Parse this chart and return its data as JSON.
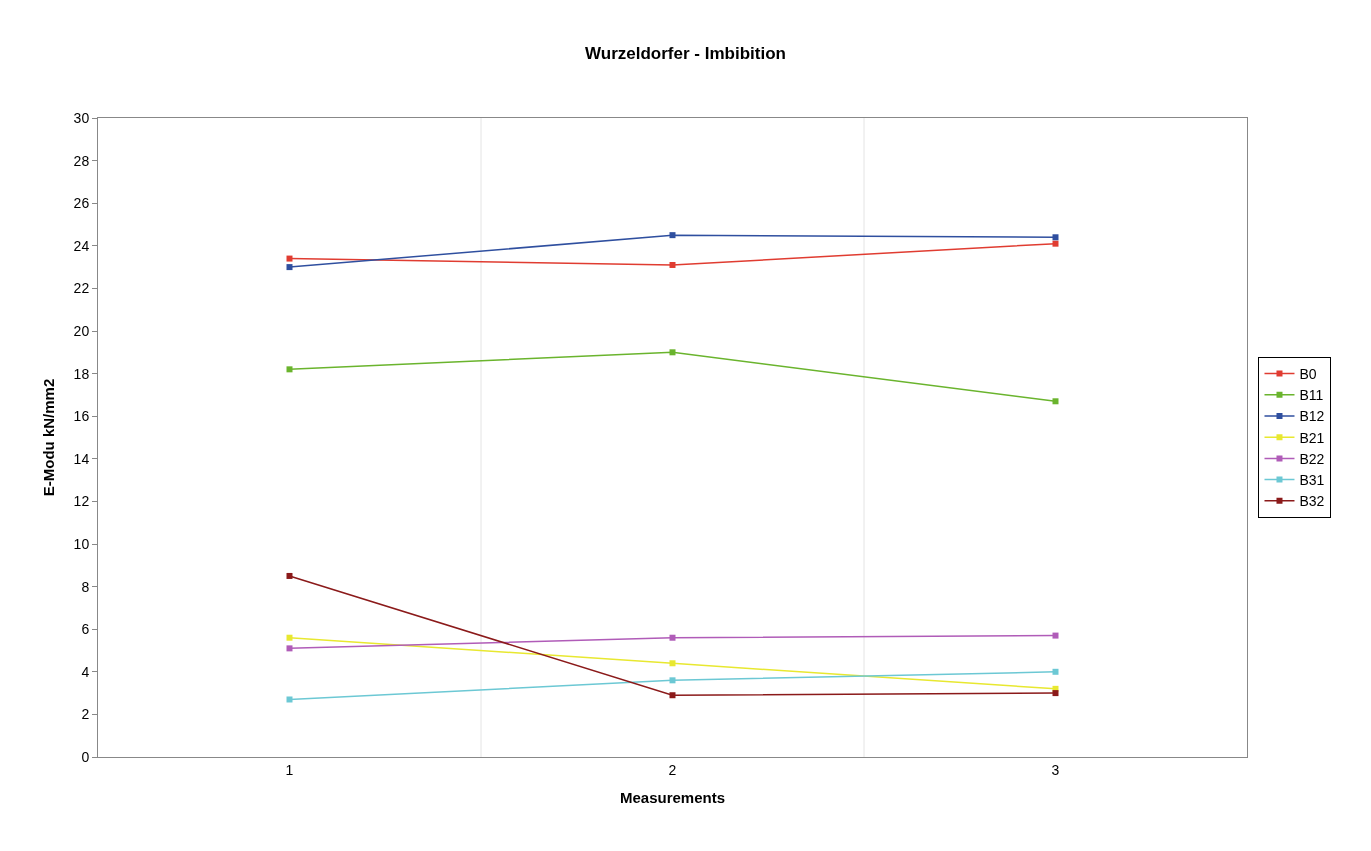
{
  "chart_data": {
    "type": "line",
    "title": "Wurzeldorfer - Imbibition",
    "xlabel": "Measurements",
    "ylabel": "E-Modu kN/mm2",
    "categories": [
      "1",
      "2",
      "3"
    ],
    "series": [
      {
        "name": "B0",
        "color": "#e03c31",
        "values": [
          23.4,
          23.1,
          24.1
        ]
      },
      {
        "name": "B11",
        "color": "#6ab42d",
        "values": [
          18.2,
          19.0,
          16.7
        ]
      },
      {
        "name": "B12",
        "color": "#2f4f9f",
        "values": [
          23.0,
          24.5,
          24.4
        ]
      },
      {
        "name": "B21",
        "color": "#e8e830",
        "values": [
          5.6,
          4.4,
          3.2
        ]
      },
      {
        "name": "B22",
        "color": "#b05cb8",
        "values": [
          5.1,
          5.6,
          5.7
        ]
      },
      {
        "name": "B31",
        "color": "#6cc8d4",
        "values": [
          2.7,
          3.6,
          4.0
        ]
      },
      {
        "name": "B32",
        "color": "#8b1a1a",
        "values": [
          8.5,
          2.9,
          3.0
        ]
      }
    ],
    "ylim": [
      0,
      30
    ],
    "yticks": [
      0,
      2,
      4,
      6,
      8,
      10,
      12,
      14,
      16,
      18,
      20,
      22,
      24,
      26,
      28,
      30
    ],
    "grid": "x",
    "legend": "right",
    "marker": "square",
    "line_style": "solid"
  }
}
